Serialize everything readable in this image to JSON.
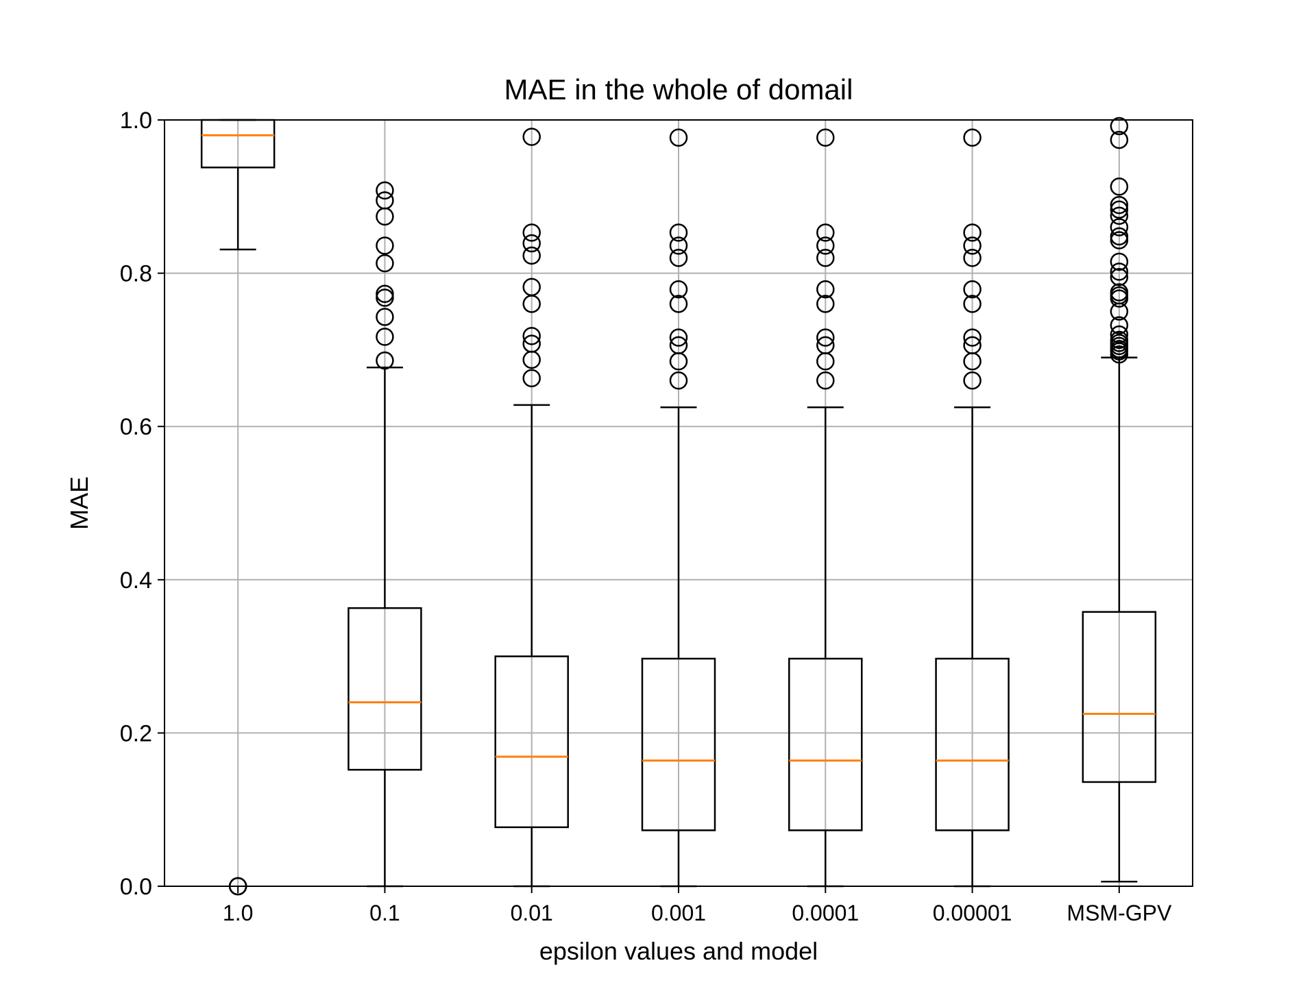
{
  "chart_data": {
    "type": "box",
    "title": "MAE in the whole of domail",
    "xlabel": "epsilon values and model",
    "ylabel": "MAE",
    "ylim": [
      0.0,
      1.0
    ],
    "yticks": [
      "0.0",
      "0.2",
      "0.4",
      "0.6",
      "0.8",
      "1.0"
    ],
    "grid": true,
    "colors": {
      "box": "#000000",
      "median": "#ff7f0e",
      "grid": "#b0b0b0",
      "flier": "#000000"
    },
    "categories": [
      "1.0",
      "0.1",
      "0.01",
      "0.001",
      "0.0001",
      "0.00001",
      "MSM-GPV"
    ],
    "boxes": [
      {
        "label": "1.0",
        "whisker_low": 0.831,
        "q1": 0.938,
        "median": 0.98,
        "q3": 1.0,
        "whisker_high": 1.0,
        "fliers": [
          0.0,
          0.0,
          0.0
        ]
      },
      {
        "label": "0.1",
        "whisker_low": 0.0,
        "q1": 0.152,
        "median": 0.24,
        "q3": 0.363,
        "whisker_high": 0.677,
        "fliers": [
          0.686,
          0.717,
          0.743,
          0.768,
          0.773,
          0.813,
          0.836,
          0.874,
          0.895,
          0.908
        ]
      },
      {
        "label": "0.01",
        "whisker_low": 0.0,
        "q1": 0.077,
        "median": 0.169,
        "q3": 0.3,
        "whisker_high": 0.628,
        "fliers": [
          0.663,
          0.687,
          0.708,
          0.718,
          0.76,
          0.782,
          0.823,
          0.839,
          0.853,
          0.978
        ]
      },
      {
        "label": "0.001",
        "whisker_low": 0.0,
        "q1": 0.073,
        "median": 0.164,
        "q3": 0.297,
        "whisker_high": 0.625,
        "fliers": [
          0.66,
          0.685,
          0.706,
          0.716,
          0.76,
          0.779,
          0.82,
          0.836,
          0.853,
          0.977
        ]
      },
      {
        "label": "0.0001",
        "whisker_low": 0.0,
        "q1": 0.073,
        "median": 0.164,
        "q3": 0.297,
        "whisker_high": 0.625,
        "fliers": [
          0.66,
          0.685,
          0.706,
          0.716,
          0.76,
          0.779,
          0.82,
          0.836,
          0.853,
          0.977
        ]
      },
      {
        "label": "0.00001",
        "whisker_low": 0.0,
        "q1": 0.073,
        "median": 0.164,
        "q3": 0.297,
        "whisker_high": 0.625,
        "fliers": [
          0.66,
          0.685,
          0.706,
          0.716,
          0.76,
          0.779,
          0.82,
          0.836,
          0.853,
          0.977
        ]
      },
      {
        "label": "MSM-GPV",
        "whisker_low": 0.006,
        "q1": 0.136,
        "median": 0.225,
        "q3": 0.358,
        "whisker_high": 0.69,
        "fliers": [
          0.694,
          0.698,
          0.701,
          0.705,
          0.709,
          0.713,
          0.72,
          0.732,
          0.75,
          0.767,
          0.771,
          0.775,
          0.795,
          0.802,
          0.815,
          0.843,
          0.848,
          0.86,
          0.875,
          0.883,
          0.889,
          0.913,
          0.974,
          0.992
        ]
      }
    ]
  }
}
